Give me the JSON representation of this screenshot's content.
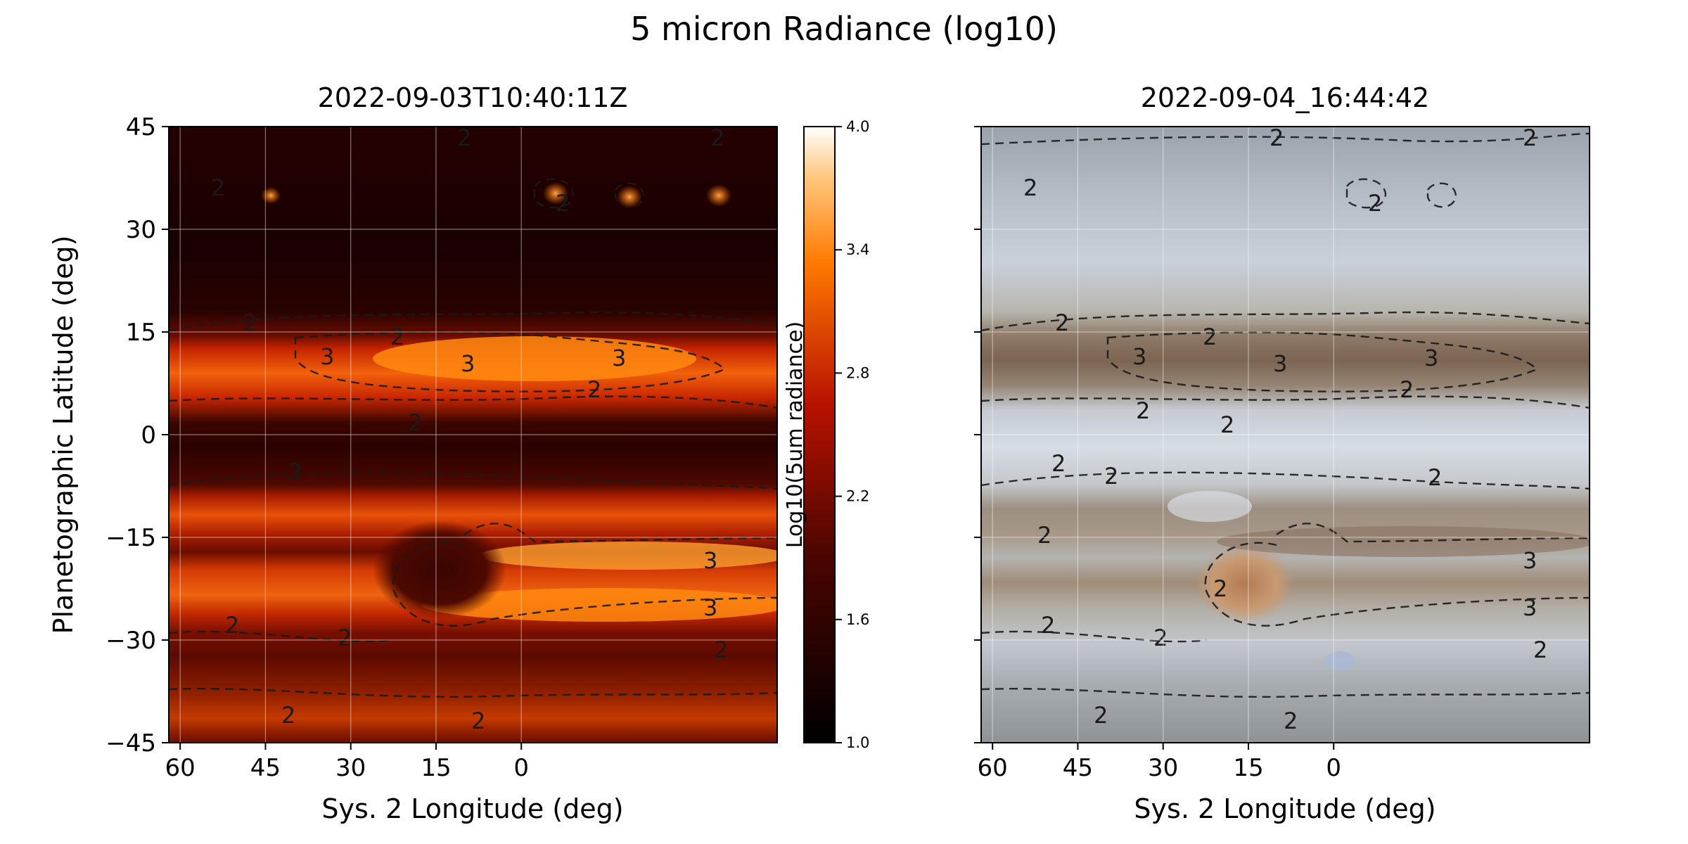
{
  "figure": {
    "title": "5 micron Radiance (log10)"
  },
  "chart_data": [
    {
      "type": "heatmap",
      "title": "2022-09-03T10:40:11Z",
      "xlabel": "Sys. 2 Longitude (deg)",
      "ylabel": "Planetographic Latitude (deg)",
      "xlim": [
        62,
        -45
      ],
      "ylim": [
        -45,
        45
      ],
      "x_ticks": [
        "60",
        "45",
        "30",
        "15",
        "0"
      ],
      "y_ticks": [
        "45",
        "30",
        "15",
        "0",
        "−15",
        "−30",
        "−45"
      ],
      "grid": true,
      "colormap": "gist_heat",
      "colorbar": {
        "label": "Log10(5um radiance)",
        "range": [
          1.0,
          4.0
        ],
        "ticks": [
          "4.0",
          "3.4",
          "2.8",
          "2.2",
          "1.6",
          "1.0"
        ]
      },
      "contour_levels": [
        2,
        3
      ],
      "contour_labels": [
        "2",
        "2",
        "2",
        "2",
        "3",
        "3",
        "3",
        "2",
        "2",
        "2",
        "2",
        "3",
        "3",
        "2",
        "2",
        "2",
        "2",
        "2",
        "2"
      ],
      "bands": [
        {
          "lat_range": [
            20,
            45
          ],
          "log10_radiance": 1.3
        },
        {
          "lat_range": [
            6,
            14
          ],
          "log10_radiance": 3.0
        },
        {
          "lat_range": [
            -10,
            5
          ],
          "log10_radiance": 1.8
        },
        {
          "lat_range": [
            -14,
            -6
          ],
          "log10_radiance": 2.6
        },
        {
          "lat_range": [
            -20,
            -14
          ],
          "log10_radiance": 3.1
        },
        {
          "lat_range": [
            -27,
            -22
          ],
          "log10_radiance": 3.0
        },
        {
          "lat_range": [
            -45,
            -34
          ],
          "log10_radiance": 2.0
        }
      ]
    },
    {
      "type": "heatmap",
      "title": "2022-09-04_16:44:42",
      "xlabel": "Sys. 2 Longitude (deg)",
      "ylabel": "",
      "xlim": [
        62,
        -45
      ],
      "ylim": [
        -45,
        45
      ],
      "x_ticks": [
        "60",
        "45",
        "30",
        "15",
        "0"
      ],
      "grid": true,
      "contour_levels": [
        2,
        3
      ],
      "contour_labels": [
        "2",
        "2",
        "2",
        "2",
        "2",
        "2",
        "3",
        "3",
        "3",
        "2",
        "2",
        "2",
        "2",
        "2",
        "2",
        "2",
        "3",
        "3",
        "2",
        "2",
        "2",
        "2",
        "2",
        "2"
      ]
    }
  ]
}
